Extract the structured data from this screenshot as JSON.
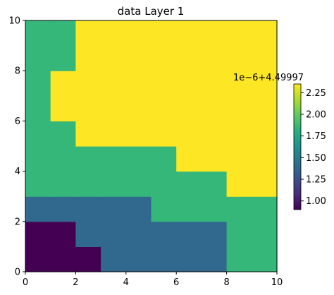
{
  "chart_data": {
    "type": "heatmap",
    "title": "data Layer 1",
    "xlabel": "",
    "ylabel": "",
    "xlim": [
      0,
      10
    ],
    "ylim": [
      0,
      10
    ],
    "x_ticks": [
      "0",
      "2",
      "4",
      "6",
      "8",
      "10"
    ],
    "y_ticks": [
      "0",
      "2",
      "4",
      "6",
      "8",
      "10"
    ],
    "colormap": "viridis",
    "vmin": 0.9,
    "vmax": 2.35,
    "grid": "off",
    "x_edges": [
      0,
      1,
      2,
      3,
      5,
      6,
      8,
      10
    ],
    "y_edges": [
      0,
      1,
      2,
      3,
      4,
      5,
      6,
      8,
      10
    ],
    "rows_bottom_to_top": [
      [
        0.9,
        0.9,
        0.9,
        1.4,
        1.4,
        1.4,
        1.9
      ],
      [
        0.9,
        0.9,
        1.4,
        1.4,
        1.4,
        1.4,
        1.9
      ],
      [
        1.4,
        1.4,
        1.4,
        1.4,
        1.9,
        1.9,
        1.9
      ],
      [
        1.9,
        1.9,
        1.9,
        1.9,
        1.9,
        1.9,
        2.35
      ],
      [
        1.9,
        1.9,
        1.9,
        1.9,
        1.9,
        2.35,
        2.35
      ],
      [
        1.9,
        1.9,
        2.35,
        2.35,
        2.35,
        2.35,
        2.35
      ],
      [
        1.9,
        2.35,
        2.35,
        2.35,
        2.35,
        2.35,
        2.35
      ],
      [
        1.9,
        1.9,
        2.35,
        2.35,
        2.35,
        2.35,
        2.35
      ]
    ],
    "colorbar": {
      "ticks": [
        "1.00",
        "1.25",
        "1.50",
        "1.75",
        "2.00",
        "2.25"
      ],
      "tick_values": [
        1.0,
        1.25,
        1.5,
        1.75,
        2.0,
        2.25
      ],
      "offset_text": "1e−6+4.49997"
    }
  },
  "colors": {
    "level_0.9": "#440154",
    "level_1.4": "#31688e",
    "level_1.9": "#35b779",
    "level_2.35": "#fde725"
  }
}
